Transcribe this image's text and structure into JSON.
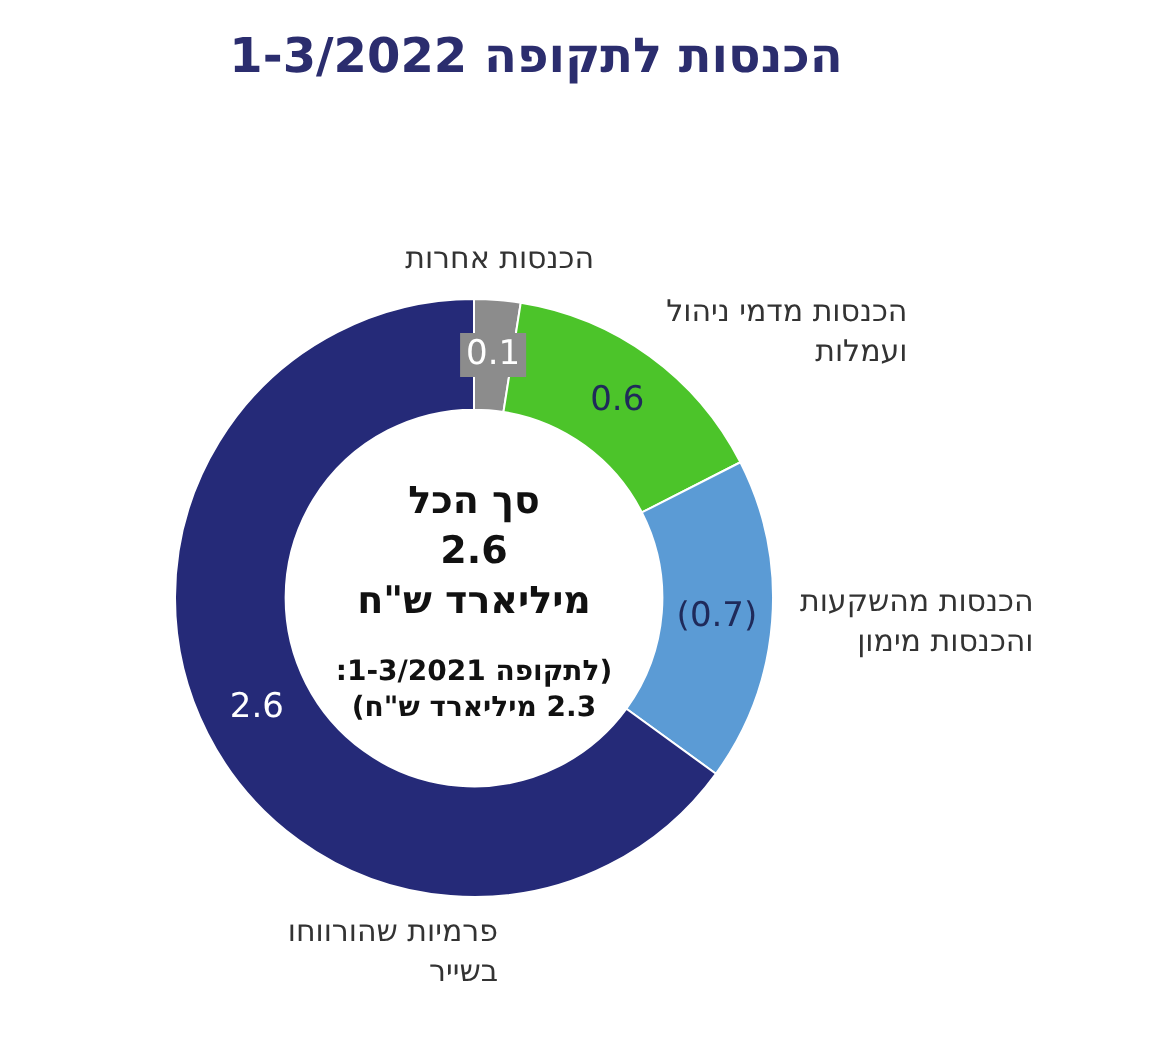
{
  "chart_data": {
    "type": "donut",
    "title": "הכנסות לתקופה 1-3/2022",
    "categories": [
      "הכנסות אחרות",
      "הכנסות מדמי ניהול ועמלות",
      "הכנסות מהשקעות והכנסות מימון",
      "פרמיות שהורווחו בשייר"
    ],
    "values": [
      0.1,
      0.6,
      0.7,
      2.6
    ],
    "value_labels": [
      "0.1",
      "0.6",
      "(0.7)",
      "2.6"
    ],
    "colors": [
      "#8c8c8c",
      "#4cc42a",
      "#5b9bd5",
      "#252a78"
    ],
    "annotations": [
      "סך הכל",
      "2.6",
      "מיליארד ש\"ח",
      "(לתקופה 1-3/2021:",
      "2.3 מיליארד ש\"ח)"
    ]
  }
}
